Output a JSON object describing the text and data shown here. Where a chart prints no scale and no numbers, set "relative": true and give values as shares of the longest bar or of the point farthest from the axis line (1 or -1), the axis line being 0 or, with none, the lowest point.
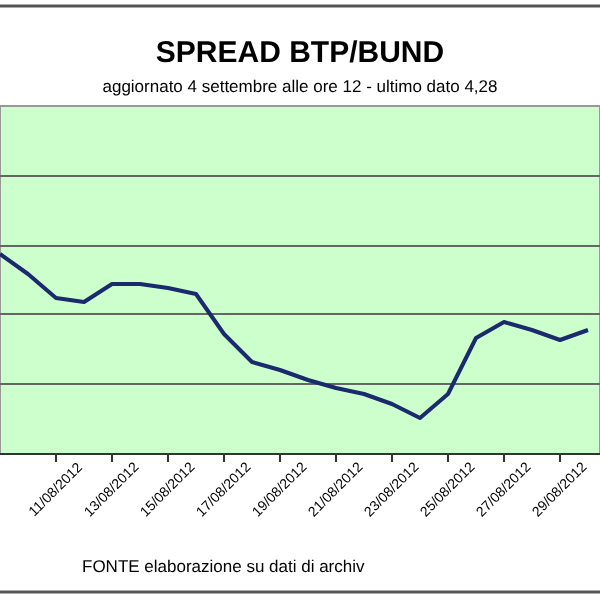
{
  "chart_data": {
    "type": "line",
    "title": "SPREAD  BTP/BUND",
    "subtitle": "aggiornato 4 settembre alle ore 12 - ultimo dato 4,28",
    "categories": [
      null,
      null,
      "11/08/2012",
      null,
      "13/08/2012",
      null,
      "15/08/2012",
      null,
      "17/08/2012",
      null,
      "19/08/2012",
      null,
      "21/08/2012",
      null,
      "23/08/2012",
      null,
      "25/08/2012",
      null,
      "27/08/2012",
      null,
      "29/08/2012",
      null
    ],
    "series": [
      {
        "color": "#1a2a6c",
        "values": [
          1.0,
          0.9,
          0.78,
          0.76,
          0.85,
          0.85,
          0.83,
          0.8,
          0.6,
          0.46,
          0.42,
          0.37,
          0.33,
          0.3,
          0.25,
          0.18,
          0.3,
          0.58,
          0.66,
          0.62,
          0.57,
          0.62
        ]
      }
    ],
    "relative": true,
    "marker": "none",
    "ref_lines": [
      {
        "axis": "y",
        "value": 0.35,
        "color": "#666666"
      },
      {
        "axis": "y",
        "value": 0.7,
        "color": "#666666"
      },
      {
        "axis": "y",
        "value": 1.04,
        "color": "#666666"
      },
      {
        "axis": "y",
        "value": 1.39,
        "color": "#666666"
      }
    ],
    "annotations": [
      "FONTE elaborazione su dati di archiv"
    ]
  }
}
